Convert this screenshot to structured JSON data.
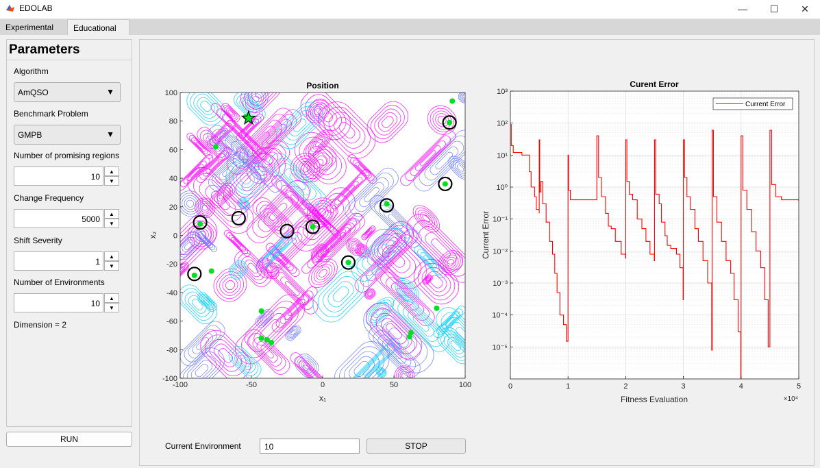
{
  "window": {
    "title": "EDOLAB",
    "minimize": "—",
    "maximize": "☐",
    "close": "✕"
  },
  "tabs": [
    {
      "label": "Experimental"
    },
    {
      "label": "Educational"
    }
  ],
  "params": {
    "title": "Parameters",
    "algorithm_label": "Algorithm",
    "algorithm_value": "AmQSO",
    "benchmark_label": "Benchmark Problem",
    "benchmark_value": "GMPB",
    "regions_label": "Number of promising regions",
    "regions_value": "10",
    "freq_label": "Change Frequency",
    "freq_value": "5000",
    "severity_label": "Shift Severity",
    "severity_value": "1",
    "envs_label": "Number of Environments",
    "envs_value": "10",
    "dimension": "Dimension = 2",
    "run_label": "RUN"
  },
  "footer": {
    "env_label": "Current Environment",
    "env_value": "10",
    "stop_label": "STOP"
  },
  "chart_data": [
    {
      "type": "scatter",
      "title": "Position",
      "xlabel": "x₁",
      "ylabel": "x₂",
      "xlim": [
        -100,
        100
      ],
      "ylim": [
        -100,
        100
      ],
      "xticks": [
        "-100",
        "-50",
        "0",
        "50",
        "100"
      ],
      "yticks": [
        "100",
        "80",
        "60",
        "40",
        "20",
        "0",
        "-20",
        "-40",
        "-60",
        "-80",
        "-100"
      ],
      "optimum_star": [
        -52,
        82
      ],
      "particles": [
        [
          -86,
          8
        ],
        [
          -90,
          -28
        ],
        [
          -54,
          83
        ],
        [
          -75,
          62
        ],
        [
          -78,
          -25
        ],
        [
          -43,
          -53
        ],
        [
          -43,
          -72
        ],
        [
          -39,
          -73
        ],
        [
          -36,
          -75
        ],
        [
          -7,
          6
        ],
        [
          18,
          -19
        ],
        [
          45,
          22
        ],
        [
          62,
          -68
        ],
        [
          61,
          -71
        ],
        [
          86,
          36
        ],
        [
          89,
          79
        ],
        [
          91,
          94
        ],
        [
          80,
          -51
        ]
      ],
      "circles": [
        [
          -86,
          9
        ],
        [
          -90,
          -27
        ],
        [
          -59,
          12
        ],
        [
          -25,
          3
        ],
        [
          -7,
          6
        ],
        [
          18,
          -19
        ],
        [
          45,
          21
        ],
        [
          86,
          36
        ],
        [
          89,
          79
        ]
      ],
      "colors": {
        "particle": "#00e020",
        "circle": "#000000",
        "contour1": "#ff00ff",
        "contour2": "#6677ff",
        "contour3": "#00ccff"
      }
    },
    {
      "type": "line",
      "title": "Curent Error",
      "xlabel": "Fitness Evaluation",
      "ylabel": "Current Error",
      "yscale": "log",
      "xlim": [
        0,
        50000
      ],
      "ylim": [
        1e-06,
        1000
      ],
      "xticks": [
        "0",
        "1",
        "2",
        "3",
        "4",
        "5"
      ],
      "x_multiplier": "×10⁴",
      "yticks": [
        "10⁻⁵",
        "10⁻⁴",
        "10⁻³",
        "10⁻²",
        "10⁻¹",
        "10⁰",
        "10¹",
        "10²",
        "10³"
      ],
      "series": [
        {
          "name": "Current Error",
          "color": "#ff0000",
          "points": [
            [
              0,
              90
            ],
            [
              150,
              20
            ],
            [
              500,
              12
            ],
            [
              2000,
              10
            ],
            [
              3000,
              10
            ],
            [
              3300,
              3
            ],
            [
              3600,
              1
            ],
            [
              4200,
              0.5
            ],
            [
              4500,
              0.2
            ],
            [
              5000,
              0.15
            ],
            [
              5000,
              30
            ],
            [
              5100,
              0.7
            ],
            [
              5300,
              1.5
            ],
            [
              5600,
              0.3
            ],
            [
              6200,
              0.08
            ],
            [
              6800,
              0.02
            ],
            [
              7300,
              0.008
            ],
            [
              7700,
              0.002
            ],
            [
              8100,
              0.0005
            ],
            [
              8600,
              0.0001
            ],
            [
              9200,
              5e-05
            ],
            [
              9700,
              1.5e-05
            ],
            [
              9950,
              1.5e-05
            ],
            [
              10000,
              10
            ],
            [
              10100,
              0.8
            ],
            [
              10400,
              0.4
            ],
            [
              15000,
              0.4
            ],
            [
              15000,
              40
            ],
            [
              15300,
              2
            ],
            [
              15800,
              0.5
            ],
            [
              16500,
              0.15
            ],
            [
              17000,
              0.06
            ],
            [
              17500,
              0.05
            ],
            [
              18200,
              0.02
            ],
            [
              19200,
              0.008
            ],
            [
              19950,
              0.006
            ],
            [
              20000,
              30
            ],
            [
              20200,
              1.5
            ],
            [
              20600,
              0.6
            ],
            [
              21200,
              0.4
            ],
            [
              22000,
              0.1
            ],
            [
              22800,
              0.05
            ],
            [
              23500,
              0.02
            ],
            [
              24200,
              0.008
            ],
            [
              24950,
              0.005
            ],
            [
              25000,
              30
            ],
            [
              25200,
              0.6
            ],
            [
              25800,
              0.3
            ],
            [
              26200,
              0.08
            ],
            [
              26800,
              0.03
            ],
            [
              27200,
              0.015
            ],
            [
              27800,
              0.012
            ],
            [
              28800,
              0.008
            ],
            [
              29400,
              0.003
            ],
            [
              29950,
              0.0003
            ],
            [
              30000,
              30
            ],
            [
              30200,
              2
            ],
            [
              30600,
              0.5
            ],
            [
              31200,
              0.2
            ],
            [
              32000,
              0.05
            ],
            [
              32600,
              0.02
            ],
            [
              33400,
              0.005
            ],
            [
              34200,
              0.001
            ],
            [
              34900,
              8e-06
            ],
            [
              35000,
              60
            ],
            [
              35200,
              0.5
            ],
            [
              35800,
              0.08
            ],
            [
              36600,
              0.02
            ],
            [
              37400,
              0.005
            ],
            [
              38200,
              0.002
            ],
            [
              38800,
              0.0003
            ],
            [
              39500,
              3e-05
            ],
            [
              39950,
              5e-07
            ],
            [
              40000,
              40
            ],
            [
              40300,
              0.8
            ],
            [
              41000,
              0.2
            ],
            [
              41800,
              0.04
            ],
            [
              42600,
              0.01
            ],
            [
              43400,
              0.003
            ],
            [
              44100,
              0.0003
            ],
            [
              44700,
              1e-05
            ],
            [
              44900,
              1e-05
            ],
            [
              45000,
              60
            ],
            [
              45300,
              1.2
            ],
            [
              46000,
              0.5
            ],
            [
              47000,
              0.4
            ],
            [
              50000,
              0.35
            ]
          ]
        }
      ],
      "legend": "top-right"
    }
  ]
}
